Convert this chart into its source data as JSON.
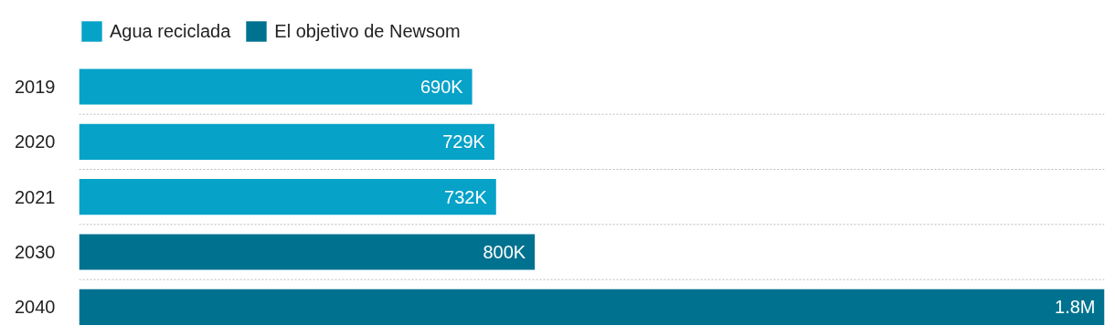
{
  "chart_data": {
    "type": "bar",
    "orientation": "horizontal",
    "categories": [
      "2019",
      "2020",
      "2021",
      "2030",
      "2040"
    ],
    "series": [
      {
        "name": "Agua reciclada",
        "color": "#06a2c8",
        "values": [
          690000,
          729000,
          732000,
          null,
          null
        ],
        "value_labels": [
          "690K",
          "729K",
          "732K",
          null,
          null
        ]
      },
      {
        "name": "El objetivo de Newsom",
        "color": "#00728f",
        "values": [
          null,
          null,
          null,
          800000,
          1800000
        ],
        "value_labels": [
          null,
          null,
          null,
          "800K",
          "1.8M"
        ]
      }
    ],
    "xlim": [
      0,
      1800000
    ],
    "tick_labels": "y",
    "grid": "y",
    "legend": "top left"
  }
}
